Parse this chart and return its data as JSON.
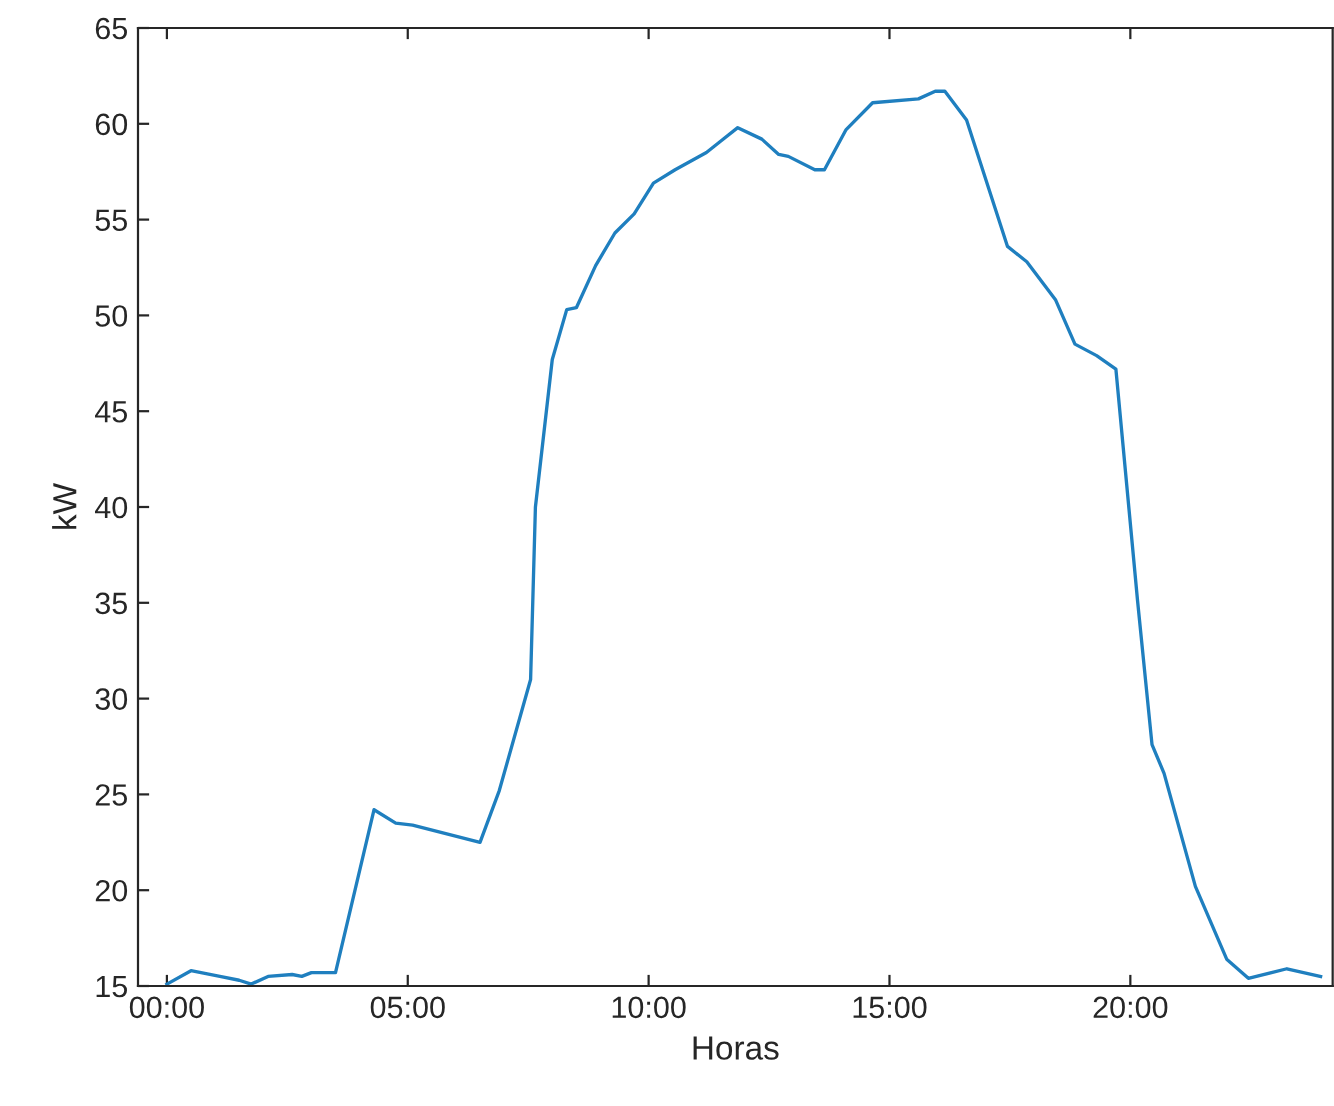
{
  "chart_data": {
    "type": "line",
    "xlabel": "Horas",
    "ylabel": "kW",
    "x": [
      0,
      0.5,
      1.1,
      1.5,
      1.75,
      2.1,
      2.6,
      2.8,
      3.0,
      3.5,
      4.3,
      4.75,
      5.1,
      6.5,
      6.9,
      7.55,
      7.65,
      8.0,
      8.3,
      8.5,
      8.9,
      9.3,
      9.7,
      10.1,
      10.55,
      11.2,
      11.5,
      11.85,
      12.35,
      12.7,
      12.9,
      13.45,
      13.65,
      14.1,
      14.65,
      15.6,
      15.95,
      16.15,
      16.6,
      17.05,
      17.45,
      17.85,
      18.45,
      18.85,
      19.3,
      19.7,
      20.15,
      20.45,
      20.7,
      21.35,
      22.0,
      22.45,
      23.25,
      23.95
    ],
    "series": [
      {
        "color": "#1f7fbf",
        "values": [
          15.1,
          15.8,
          15.5,
          15.3,
          15.1,
          15.5,
          15.6,
          15.5,
          15.7,
          15.7,
          24.2,
          23.5,
          23.4,
          22.5,
          25.2,
          31,
          40.0,
          47.7,
          50.3,
          50.4,
          52.6,
          54.3,
          55.3,
          56.9,
          57.6,
          58.5,
          59.1,
          59.8,
          59.2,
          58.4,
          58.3,
          57.6,
          57.6,
          59.7,
          61.1,
          61.3,
          61.7,
          61.7,
          60.2,
          56.7,
          53.6,
          52.8,
          50.8,
          48.5,
          47.9,
          47.2,
          35.1,
          27.6,
          26.1,
          20.2,
          16.4,
          15.4,
          15.9,
          15.5
        ]
      }
    ],
    "xlim": [
      -0.6,
      24.2
    ],
    "ylim": [
      15,
      65
    ],
    "xticks": [
      {
        "value": 0,
        "label": "00:00"
      },
      {
        "value": 5,
        "label": "05:00"
      },
      {
        "value": 10,
        "label": "10:00"
      },
      {
        "value": 15,
        "label": "15:00"
      },
      {
        "value": 20,
        "label": "20:00"
      }
    ],
    "yticks": [
      15,
      20,
      25,
      30,
      35,
      40,
      45,
      50,
      55,
      60,
      65
    ],
    "grid": false,
    "marker": "none",
    "line_style": "solid"
  }
}
